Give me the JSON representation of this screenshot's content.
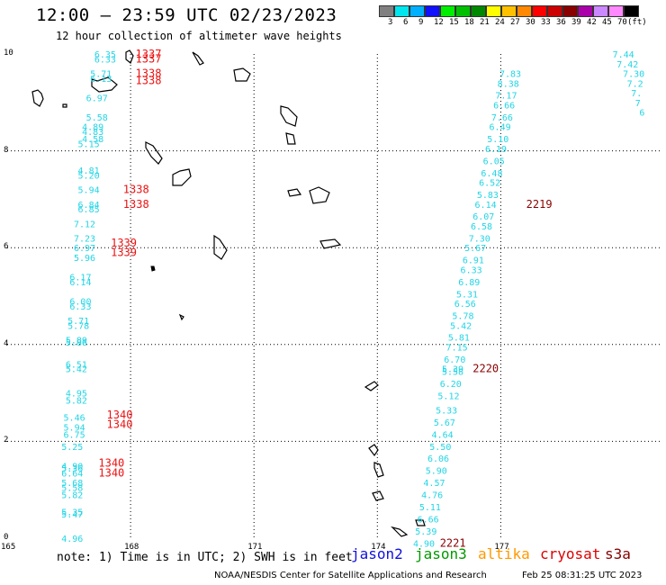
{
  "title": "12:00 – 23:59 UTC 02/23/2023",
  "subtitle": "12 hour collection of altimeter wave heights",
  "color_scale": {
    "labels": [
      "3",
      "6",
      "9",
      "12",
      "15",
      "18",
      "21",
      "24",
      "27",
      "30",
      "33",
      "36",
      "39",
      "42",
      "45",
      "70",
      "(ft)"
    ],
    "colors": [
      "#808080",
      "#00e5ee",
      "#00b0ff",
      "#1010ff",
      "#00ee00",
      "#00c000",
      "#008800",
      "#ffff00",
      "#ffc000",
      "#ff8800",
      "#ff0000",
      "#cc0000",
      "#880000",
      "#aa00aa",
      "#cc88ff",
      "#ff88ff",
      "#000000"
    ]
  },
  "y_axis": {
    "labels": [
      "10",
      "8",
      "6",
      "4",
      "2",
      "0"
    ],
    "values": [
      10,
      8,
      6,
      4,
      2,
      0
    ]
  },
  "x_axis": {
    "labels": [
      "165",
      "168",
      "171",
      "174",
      "177"
    ],
    "values": [
      165,
      168,
      171,
      174,
      177
    ]
  },
  "point_colors": {
    "value": "#22d5e5",
    "time": "#ee1111",
    "time_late": "#880000"
  },
  "west_track_values": [
    {
      "lon": 167.6,
      "lat": 10.0,
      "v": "6.35"
    },
    {
      "lon": 167.6,
      "lat": 9.9,
      "v": "6.33"
    },
    {
      "lon": 167.5,
      "lat": 9.6,
      "v": "5.71"
    },
    {
      "lon": 167.5,
      "lat": 9.5,
      "v": "6.13"
    },
    {
      "lon": 167.4,
      "lat": 9.1,
      "v": "6.97"
    },
    {
      "lon": 167.4,
      "lat": 8.7,
      "v": "5.58"
    },
    {
      "lon": 167.3,
      "lat": 8.5,
      "v": "4.89"
    },
    {
      "lon": 167.3,
      "lat": 8.4,
      "v": "4.83"
    },
    {
      "lon": 167.3,
      "lat": 8.25,
      "v": "4.58"
    },
    {
      "lon": 167.2,
      "lat": 8.15,
      "v": "5.15"
    },
    {
      "lon": 167.2,
      "lat": 7.6,
      "v": "4.81"
    },
    {
      "lon": 167.2,
      "lat": 7.5,
      "v": "5.20"
    },
    {
      "lon": 167.2,
      "lat": 7.2,
      "v": "5.94"
    },
    {
      "lon": 167.2,
      "lat": 6.9,
      "v": "6.84"
    },
    {
      "lon": 167.2,
      "lat": 6.8,
      "v": "6.85"
    },
    {
      "lon": 167.1,
      "lat": 6.5,
      "v": "7.12"
    },
    {
      "lon": 167.1,
      "lat": 6.2,
      "v": "7.23"
    },
    {
      "lon": 167.1,
      "lat": 6.0,
      "v": "6.97"
    },
    {
      "lon": 167.1,
      "lat": 5.8,
      "v": "5.96"
    },
    {
      "lon": 167.0,
      "lat": 5.4,
      "v": "6.17"
    },
    {
      "lon": 167.0,
      "lat": 5.3,
      "v": "6.14"
    },
    {
      "lon": 167.0,
      "lat": 4.9,
      "v": "6.00"
    },
    {
      "lon": 167.0,
      "lat": 4.8,
      "v": "6.33"
    },
    {
      "lon": 166.95,
      "lat": 4.5,
      "v": "5.71"
    },
    {
      "lon": 166.95,
      "lat": 4.4,
      "v": "5.78"
    },
    {
      "lon": 166.9,
      "lat": 4.1,
      "v": "5.89"
    },
    {
      "lon": 166.9,
      "lat": 4.05,
      "v": "5.86"
    },
    {
      "lon": 166.9,
      "lat": 3.6,
      "v": "6.51"
    },
    {
      "lon": 166.9,
      "lat": 3.5,
      "v": "5.42"
    },
    {
      "lon": 166.9,
      "lat": 3.0,
      "v": "4.95"
    },
    {
      "lon": 166.9,
      "lat": 2.85,
      "v": "5.82"
    },
    {
      "lon": 166.85,
      "lat": 2.5,
      "v": "5.46"
    },
    {
      "lon": 166.85,
      "lat": 2.3,
      "v": "5.94"
    },
    {
      "lon": 166.85,
      "lat": 2.15,
      "v": "6.75"
    },
    {
      "lon": 166.8,
      "lat": 1.9,
      "v": "5.25"
    },
    {
      "lon": 166.8,
      "lat": 1.5,
      "v": "4.90"
    },
    {
      "lon": 166.8,
      "lat": 1.45,
      "v": "5.36"
    },
    {
      "lon": 166.8,
      "lat": 1.35,
      "v": "6.64"
    },
    {
      "lon": 166.8,
      "lat": 1.15,
      "v": "5.68"
    },
    {
      "lon": 166.8,
      "lat": 1.05,
      "v": "5.58"
    },
    {
      "lon": 166.8,
      "lat": 0.9,
      "v": "5.82"
    },
    {
      "lon": 166.8,
      "lat": 0.55,
      "v": "5.35"
    },
    {
      "lon": 166.8,
      "lat": 0.5,
      "v": "5.47"
    },
    {
      "lon": 166.8,
      "lat": 0.0,
      "v": "4.96"
    }
  ],
  "west_track_times": [
    {
      "lon": 168.6,
      "lat": 10.0,
      "t": "1337"
    },
    {
      "lon": 168.6,
      "lat": 9.9,
      "t": "1337"
    },
    {
      "lon": 168.6,
      "lat": 9.6,
      "t": "1338"
    },
    {
      "lon": 168.6,
      "lat": 9.45,
      "t": "1338"
    },
    {
      "lon": 168.3,
      "lat": 7.2,
      "t": "1338"
    },
    {
      "lon": 168.3,
      "lat": 6.9,
      "t": "1338"
    },
    {
      "lon": 168.0,
      "lat": 6.1,
      "t": "1339"
    },
    {
      "lon": 168.0,
      "lat": 5.9,
      "t": "1339"
    },
    {
      "lon": 167.9,
      "lat": 2.55,
      "t": "1340"
    },
    {
      "lon": 167.9,
      "lat": 2.35,
      "t": "1340"
    },
    {
      "lon": 167.7,
      "lat": 1.55,
      "t": "1340"
    },
    {
      "lon": 167.7,
      "lat": 1.35,
      "t": "1340"
    }
  ],
  "east_track_values": [
    {
      "lon": 177.45,
      "lat": 9.6,
      "v": "7.83"
    },
    {
      "lon": 177.4,
      "lat": 9.4,
      "v": "8.38"
    },
    {
      "lon": 177.35,
      "lat": 9.15,
      "v": "7.17"
    },
    {
      "lon": 177.3,
      "lat": 8.95,
      "v": "6.66"
    },
    {
      "lon": 177.25,
      "lat": 8.7,
      "v": "7.66"
    },
    {
      "lon": 177.2,
      "lat": 8.5,
      "v": "6.49"
    },
    {
      "lon": 177.15,
      "lat": 8.25,
      "v": "5.10"
    },
    {
      "lon": 177.1,
      "lat": 8.05,
      "v": "6.19"
    },
    {
      "lon": 177.05,
      "lat": 7.8,
      "v": "6.05"
    },
    {
      "lon": 177.0,
      "lat": 7.55,
      "v": "6.48"
    },
    {
      "lon": 176.95,
      "lat": 7.35,
      "v": "6.52"
    },
    {
      "lon": 176.9,
      "lat": 7.1,
      "v": "5.83"
    },
    {
      "lon": 176.85,
      "lat": 6.9,
      "v": "6.14"
    },
    {
      "lon": 176.8,
      "lat": 6.65,
      "v": "6.07"
    },
    {
      "lon": 176.75,
      "lat": 6.45,
      "v": "6.58"
    },
    {
      "lon": 176.7,
      "lat": 6.2,
      "v": "7.30"
    },
    {
      "lon": 176.6,
      "lat": 6.0,
      "v": "5.67"
    },
    {
      "lon": 176.55,
      "lat": 5.75,
      "v": "6.91"
    },
    {
      "lon": 176.5,
      "lat": 5.55,
      "v": "6.33"
    },
    {
      "lon": 176.45,
      "lat": 5.3,
      "v": "6.89"
    },
    {
      "lon": 176.4,
      "lat": 5.05,
      "v": "5.31"
    },
    {
      "lon": 176.35,
      "lat": 4.85,
      "v": "6.56"
    },
    {
      "lon": 176.3,
      "lat": 4.6,
      "v": "5.78"
    },
    {
      "lon": 176.25,
      "lat": 4.4,
      "v": "5.42"
    },
    {
      "lon": 176.2,
      "lat": 4.15,
      "v": "5.81"
    },
    {
      "lon": 176.15,
      "lat": 3.95,
      "v": "7.15"
    },
    {
      "lon": 176.1,
      "lat": 3.7,
      "v": "6.70"
    },
    {
      "lon": 176.05,
      "lat": 3.5,
      "v": "5.39"
    },
    {
      "lon": 176.05,
      "lat": 3.45,
      "v": "5.58"
    },
    {
      "lon": 176.0,
      "lat": 3.2,
      "v": "6.20"
    },
    {
      "lon": 175.95,
      "lat": 2.95,
      "v": "5.12"
    },
    {
      "lon": 175.9,
      "lat": 2.65,
      "v": "5.33"
    },
    {
      "lon": 175.85,
      "lat": 2.4,
      "v": "5.67"
    },
    {
      "lon": 175.8,
      "lat": 2.15,
      "v": "4.64"
    },
    {
      "lon": 175.75,
      "lat": 1.9,
      "v": "5.50"
    },
    {
      "lon": 175.7,
      "lat": 1.65,
      "v": "6.06"
    },
    {
      "lon": 175.65,
      "lat": 1.4,
      "v": "5.90"
    },
    {
      "lon": 175.6,
      "lat": 1.15,
      "v": "4.57"
    },
    {
      "lon": 175.55,
      "lat": 0.9,
      "v": "4.76"
    },
    {
      "lon": 175.5,
      "lat": 0.65,
      "v": "5.11"
    },
    {
      "lon": 175.45,
      "lat": 0.4,
      "v": "6.66"
    },
    {
      "lon": 175.4,
      "lat": 0.15,
      "v": "5.39"
    },
    {
      "lon": 175.35,
      "lat": -0.1,
      "v": "4.90"
    }
  ],
  "east_track_times": [
    {
      "lon": 178.1,
      "lat": 6.9,
      "t": "2219"
    },
    {
      "lon": 176.8,
      "lat": 3.5,
      "t": "2220"
    },
    {
      "lon": 176.0,
      "lat": -0.1,
      "t": "2221"
    }
  ],
  "far_east_values": [
    {
      "lon": 180.2,
      "lat": 10.0,
      "v": "7.44"
    },
    {
      "lon": 180.3,
      "lat": 9.8,
      "v": "7.42"
    },
    {
      "lon": 180.45,
      "lat": 9.6,
      "v": "7.30"
    },
    {
      "lon": 180.55,
      "lat": 9.4,
      "v": "7.2"
    },
    {
      "lon": 180.65,
      "lat": 9.2,
      "v": "7."
    },
    {
      "lon": 180.75,
      "lat": 9.0,
      "v": "7"
    },
    {
      "lon": 180.85,
      "lat": 8.8,
      "v": "6"
    }
  ],
  "note": "note: 1) Time is in UTC; 2) SWH is in feet",
  "satellites": [
    {
      "name": "jason2",
      "color": "#1010dd"
    },
    {
      "name": "jason3",
      "color": "#009900"
    },
    {
      "name": "altika",
      "color": "#ff9900"
    },
    {
      "name": "cryosat",
      "color": "#dd0000"
    },
    {
      "name": "s3a",
      "color": "#880000"
    }
  ],
  "footer": "NOAA/NESDIS Center for Satellite Applications and Research",
  "footer_date": "Feb 25 08:31:25 UTC 2023"
}
